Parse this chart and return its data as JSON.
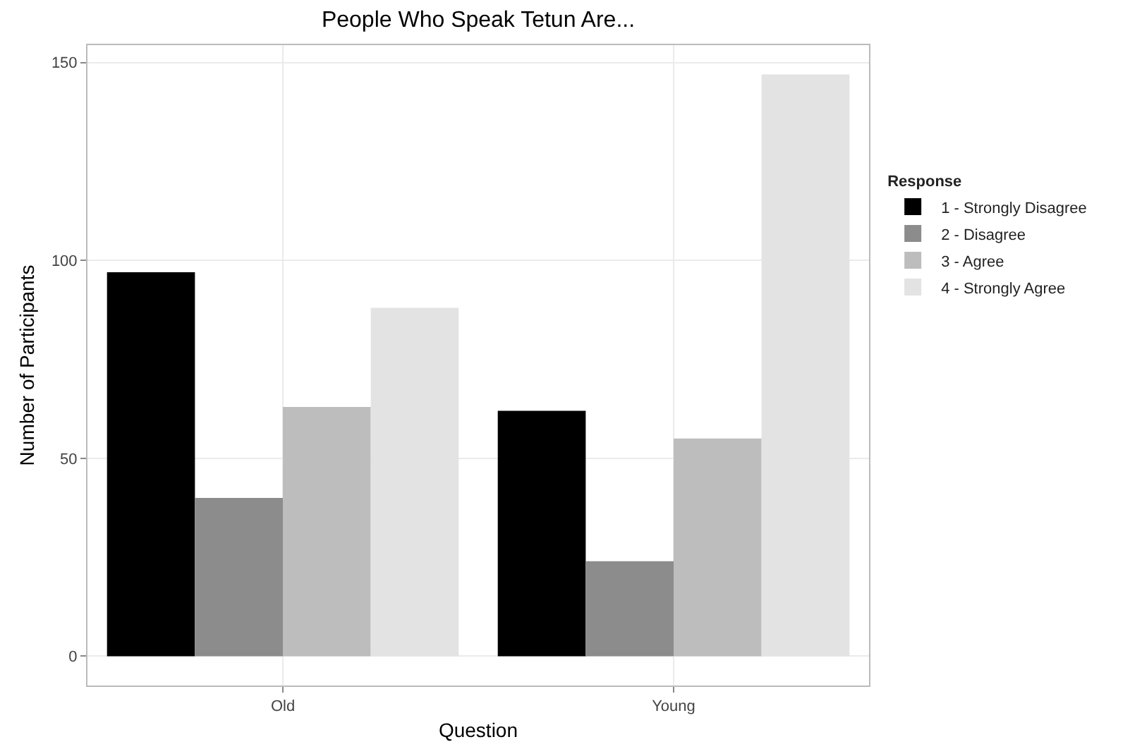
{
  "chart_data": {
    "type": "bar",
    "title": "People Who Speak Tetun Are...",
    "xlabel": "Question",
    "ylabel": "Number of Participants",
    "legend_title": "Response",
    "categories": [
      "Old",
      "Young"
    ],
    "series": [
      {
        "name": "1 - Strongly Disagree",
        "color": "#000000",
        "values": [
          97,
          62
        ]
      },
      {
        "name": "2 - Disagree",
        "color": "#8c8c8c",
        "values": [
          40,
          24
        ]
      },
      {
        "name": "3 - Agree",
        "color": "#bdbdbd",
        "values": [
          63,
          55
        ]
      },
      {
        "name": "4 - Strongly Agree",
        "color": "#e3e3e3",
        "values": [
          88,
          147
        ]
      }
    ],
    "ylim": [
      -7.4,
      154.4
    ],
    "yticks": [
      0,
      50,
      100,
      150
    ],
    "grid": true,
    "legend": "right"
  }
}
